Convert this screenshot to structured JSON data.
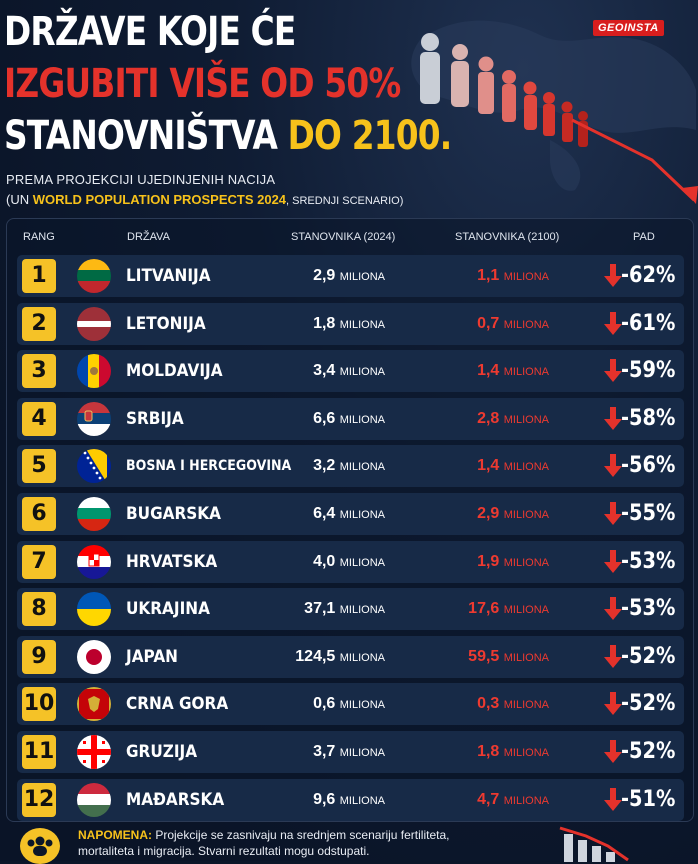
{
  "title": {
    "line1": "DRŽAVE KOJE ĆE",
    "line2": "IZGUBITI VIŠE OD 50%",
    "line3_white": "STANOVNIŠTVA",
    "line3_yellow": "DO 2100."
  },
  "brand": {
    "logo": "GEOINSTA"
  },
  "subtitle": {
    "line1": "PREMA PROJEKCIJI UJEDINJENIH NACIJA",
    "line2_open": "(UN",
    "line2_highlight": "WORLD POPULATION PROSPECTS 2024",
    "line2_close": ", SREDNJI SCENARIO)"
  },
  "table": {
    "headers": {
      "rank": "RANG",
      "country": "DRŽAVA",
      "pop2024": "STANOVNIKA (2024)",
      "pop2100": "STANOVNIKA (2100)",
      "decline": "PAD"
    },
    "unit": "MILIONA",
    "rows": [
      {
        "rank": "1",
        "country": "LITVANIJA",
        "pop2024": "2,9",
        "pop2100": "1,1",
        "decline": "-62%",
        "flag": "flag-lithuania-icon"
      },
      {
        "rank": "2",
        "country": "LETONIJA",
        "pop2024": "1,8",
        "pop2100": "0,7",
        "decline": "-61%",
        "flag": "flag-latvia-icon"
      },
      {
        "rank": "3",
        "country": "MOLDAVIJA",
        "pop2024": "3,4",
        "pop2100": "1,4",
        "decline": "-59%",
        "flag": "flag-moldova-icon"
      },
      {
        "rank": "4",
        "country": "SRBIJA",
        "pop2024": "6,6",
        "pop2100": "2,8",
        "decline": "-58%",
        "flag": "flag-serbia-icon"
      },
      {
        "rank": "5",
        "country": "BOSNA I HERCEGOVINA",
        "pop2024": "3,2",
        "pop2100": "1,4",
        "decline": "-56%",
        "flag": "flag-bosnia-icon"
      },
      {
        "rank": "6",
        "country": "BUGARSKA",
        "pop2024": "6,4",
        "pop2100": "2,9",
        "decline": "-55%",
        "flag": "flag-bulgaria-icon"
      },
      {
        "rank": "7",
        "country": "HRVATSKA",
        "pop2024": "4,0",
        "pop2100": "1,9",
        "decline": "-53%",
        "flag": "flag-croatia-icon"
      },
      {
        "rank": "8",
        "country": "UKRAJINA",
        "pop2024": "37,1",
        "pop2100": "17,6",
        "decline": "-53%",
        "flag": "flag-ukraine-icon"
      },
      {
        "rank": "9",
        "country": "JAPAN",
        "pop2024": "124,5",
        "pop2100": "59,5",
        "decline": "-52%",
        "flag": "flag-japan-icon"
      },
      {
        "rank": "10",
        "country": "CRNA GORA",
        "pop2024": "0,6",
        "pop2100": "0,3",
        "decline": "-52%",
        "flag": "flag-montenegro-icon"
      },
      {
        "rank": "11",
        "country": "GRUZIJA",
        "pop2024": "3,7",
        "pop2100": "1,8",
        "decline": "-52%",
        "flag": "flag-georgia-icon"
      },
      {
        "rank": "12",
        "country": "MAĐARSKA",
        "pop2024": "9,6",
        "pop2100": "4,7",
        "decline": "-51%",
        "flag": "flag-hungary-icon"
      }
    ]
  },
  "note": {
    "label": "NAPOMENA:",
    "text": "Projekcije se zasnivaju na srednjem scenariju fertiliteta, mortaliteta i migracija. Stvarni rezultati mogu odstupati."
  },
  "colors": {
    "background": "#0b1629",
    "accent_red": "#e4322b",
    "accent_yellow": "#f7c21b",
    "row_bg": "#172a47"
  }
}
